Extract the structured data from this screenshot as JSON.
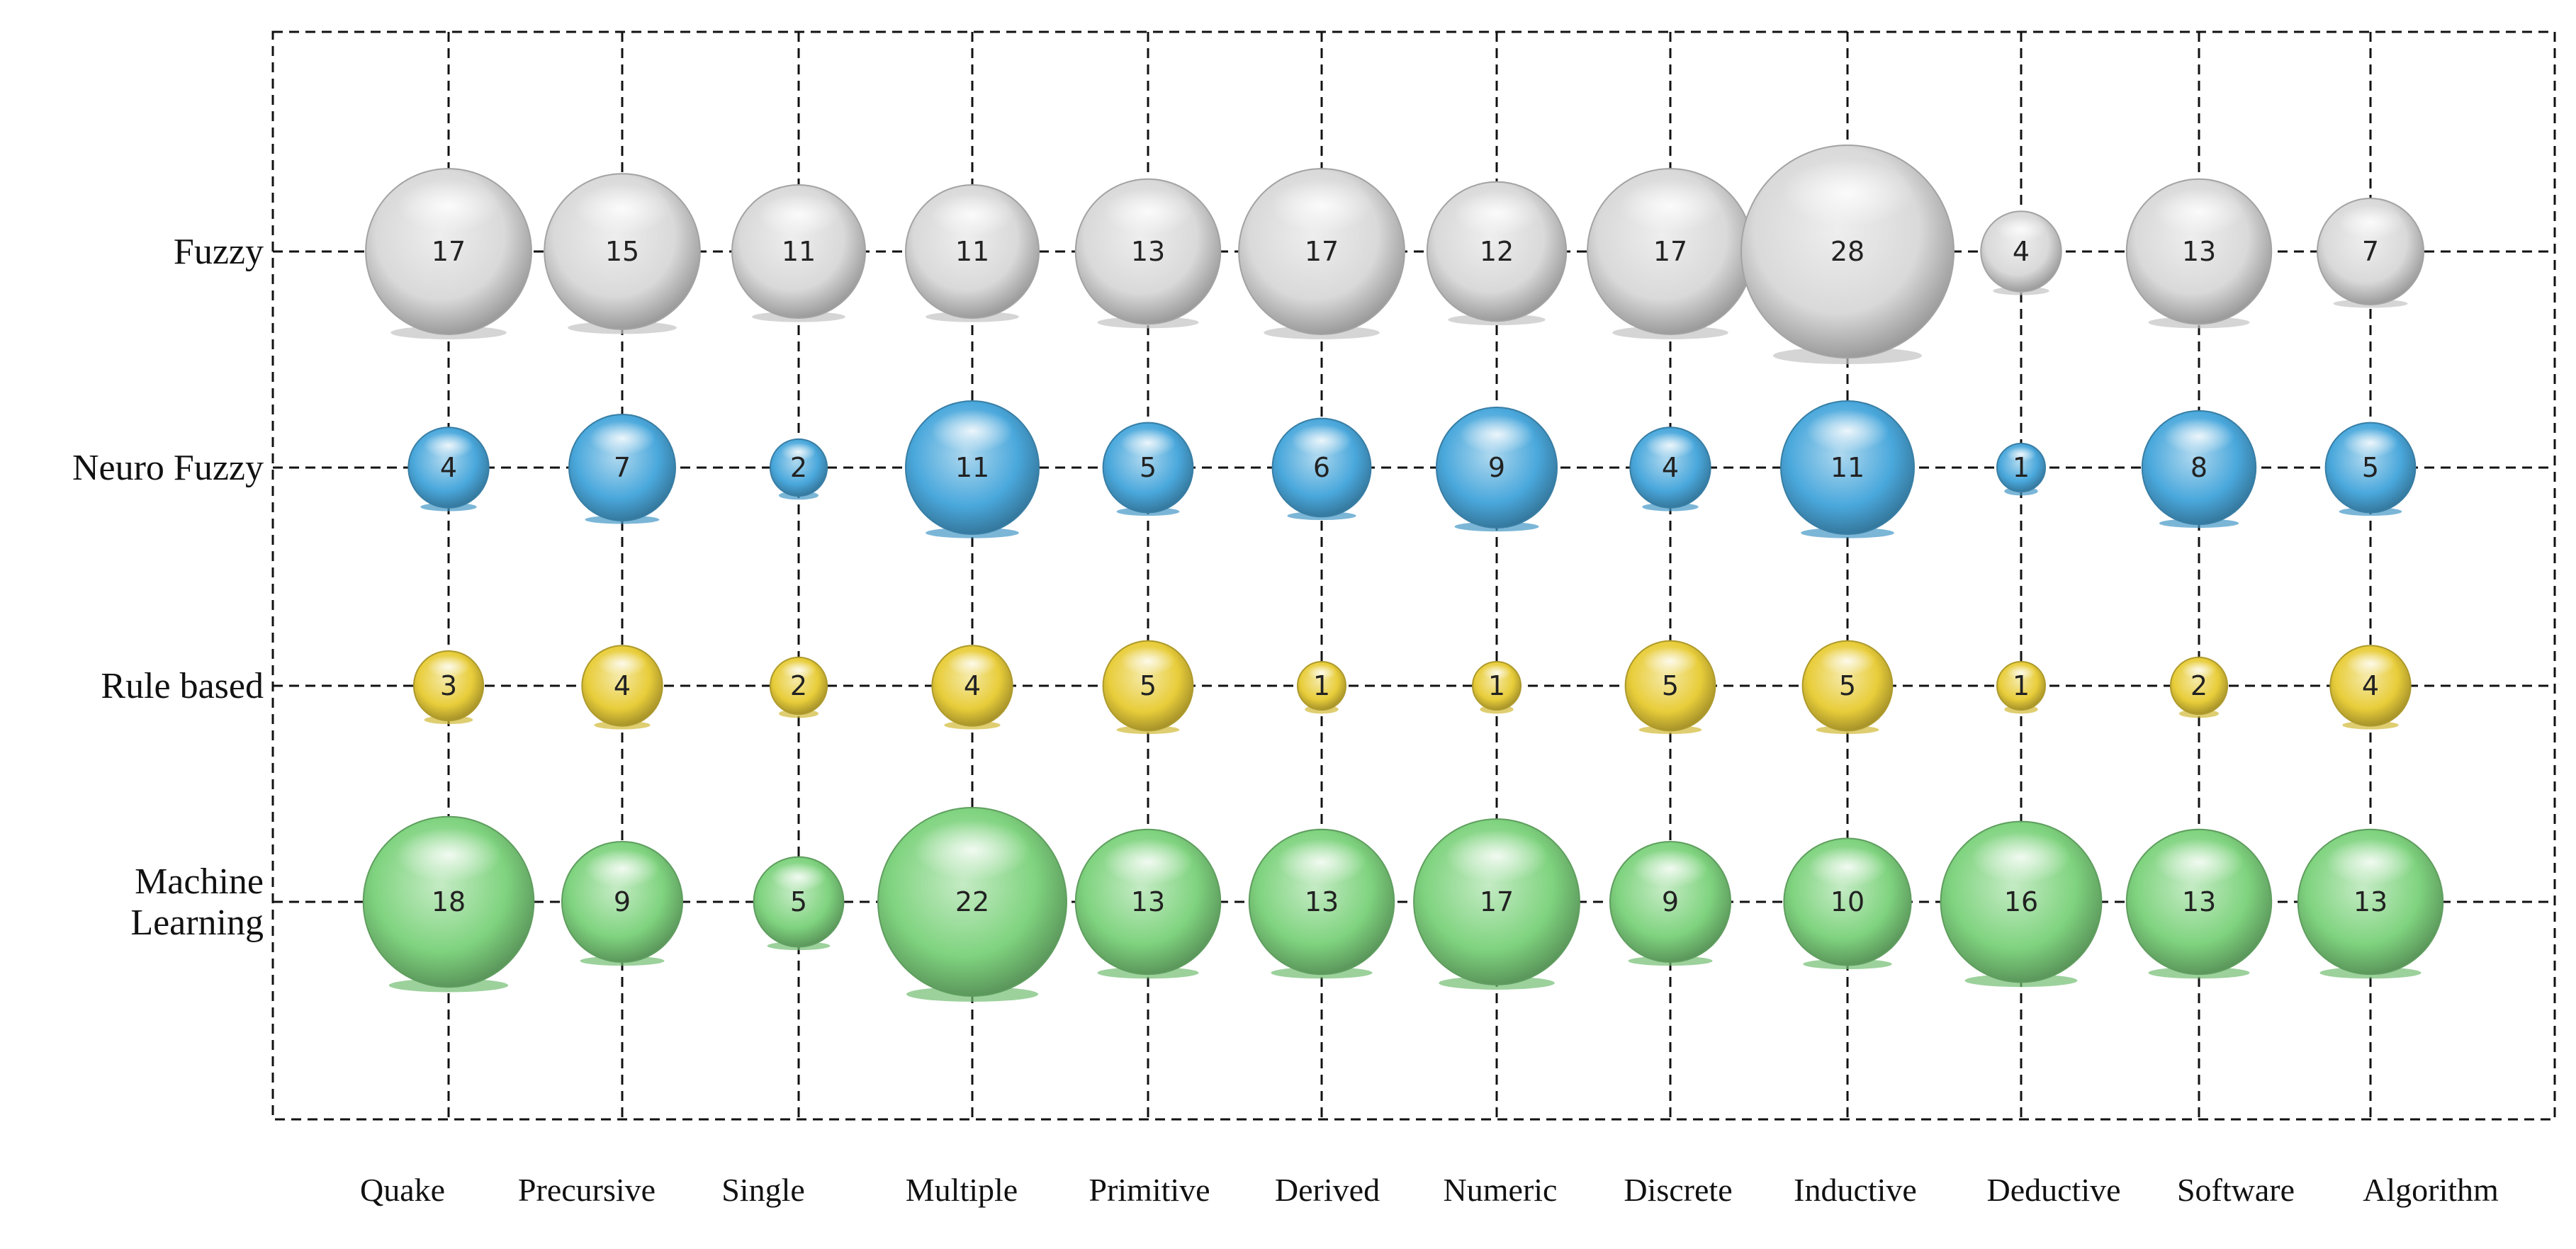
{
  "chart_data": {
    "type": "bubble",
    "title": "",
    "xlabel": "",
    "ylabel": "",
    "grid": true,
    "legend": "none",
    "categories": [
      "Quake",
      "Precursive",
      "Single",
      "Multiple",
      "Primitive",
      "Derived",
      "Numeric",
      "Discrete",
      "Inductive",
      "Deductive",
      "Software",
      "Algorithm"
    ],
    "series": [
      {
        "name": "Fuzzy",
        "color": "#d9d9d9",
        "values": [
          17,
          15,
          11,
          11,
          13,
          17,
          12,
          17,
          28,
          4,
          13,
          7
        ]
      },
      {
        "name": "Neuro Fuzzy",
        "color": "#4aa8dc",
        "values": [
          4,
          7,
          2,
          11,
          5,
          6,
          9,
          4,
          11,
          1,
          8,
          5
        ]
      },
      {
        "name": "Rule based",
        "color": "#e8cd3a",
        "values": [
          3,
          4,
          2,
          4,
          5,
          1,
          1,
          5,
          5,
          1,
          2,
          4
        ]
      },
      {
        "name": "Machine\nLearning",
        "color": "#7fd37f",
        "values": [
          18,
          9,
          5,
          22,
          13,
          13,
          17,
          9,
          10,
          16,
          13,
          13
        ]
      }
    ]
  }
}
